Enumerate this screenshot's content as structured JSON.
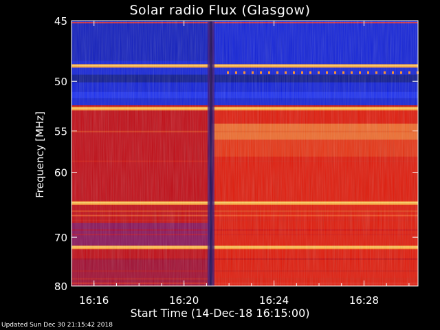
{
  "chart_data": {
    "type": "heatmap",
    "title": "Solar radio Flux (Glasgow)",
    "xlabel": "Start Time (14-Dec-18 16:15:00)",
    "ylabel": "Frequency [MHz]",
    "x_ticks": [
      "16:16",
      "16:20",
      "16:24",
      "16:28"
    ],
    "x_tick_minutes": [
      1,
      5,
      9,
      13
    ],
    "xlim_minutes": [
      0,
      15.4
    ],
    "y_ticks": [
      45,
      50,
      55,
      60,
      70,
      80
    ],
    "ylim": [
      45,
      80
    ],
    "y_scale": "reciprocal",
    "event_time_minutes": 6.2,
    "colors": {
      "background_low": "#1020d8",
      "background_high": "#e01808",
      "band_bright": "#ffd060"
    },
    "regions": [
      {
        "band": "45-48.5 MHz",
        "level": "low"
      },
      {
        "band": "48.5-52.5 MHz",
        "level": "low"
      },
      {
        "band": "52.5-80 MHz",
        "level": "high"
      }
    ],
    "bright_bands_mhz": [
      48.6,
      52.6,
      64.3,
      71.8
    ],
    "footer": "Updated Sun Dec 30 21:15:42 2018"
  }
}
